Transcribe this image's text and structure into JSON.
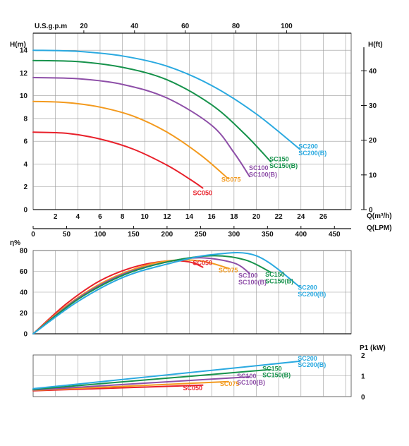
{
  "chart_data": [
    {
      "type": "line",
      "name_panel": "head",
      "ylabel_left": "H(m)",
      "ylabel_right": "H(ft)",
      "xlabel_bottom_1": "Q(m³/h)",
      "xlabel_bottom_2": "Q(LPM)",
      "xlabel_top": "U.S.g.p.m",
      "x_m3h_ticks": [
        2,
        4,
        6,
        8,
        10,
        12,
        14,
        16,
        18,
        20,
        22,
        24,
        26
      ],
      "x_lpm_ticks": [
        0,
        50,
        100,
        150,
        200,
        250,
        300,
        350,
        400,
        450
      ],
      "x_gpm_ticks": [
        20,
        40,
        60,
        80,
        100
      ],
      "y_m_ticks": [
        0,
        2,
        4,
        6,
        8,
        10,
        12,
        14
      ],
      "y_ft_ticks": [
        0,
        10,
        20,
        30,
        40
      ],
      "xlim_m3h": [
        0,
        28.5
      ],
      "ylim_m": [
        0,
        15.5
      ],
      "series": [
        {
          "name": "SC050",
          "color": "#e8202a",
          "x": [
            0,
            3,
            6,
            9,
            12,
            14,
            15.2
          ],
          "y": [
            6.8,
            6.7,
            6.2,
            5.3,
            3.9,
            2.7,
            1.9
          ]
        },
        {
          "name": "SC075",
          "color": "#f39a1e",
          "x": [
            0,
            3,
            6,
            9,
            12,
            15,
            17.5
          ],
          "y": [
            9.5,
            9.4,
            9.0,
            8.2,
            6.8,
            4.8,
            2.7
          ]
        },
        {
          "name": "SC100",
          "color": "#8e4fa8",
          "x": [
            0,
            4,
            8,
            12,
            16,
            18,
            19.4
          ],
          "y": [
            11.6,
            11.5,
            11.0,
            9.8,
            7.4,
            5.0,
            2.9
          ]
        },
        {
          "name": "SC150",
          "color": "#16924b",
          "x": [
            0,
            4,
            8,
            12,
            16,
            19,
            21.3
          ],
          "y": [
            13.1,
            13.0,
            12.5,
            11.4,
            9.2,
            6.6,
            4.2
          ]
        },
        {
          "name": "SC200",
          "color": "#2aa9e0",
          "x": [
            0,
            4,
            8,
            12,
            16,
            20,
            23.9
          ],
          "y": [
            14.0,
            13.9,
            13.5,
            12.6,
            10.9,
            8.4,
            5.3
          ]
        }
      ],
      "labels": [
        {
          "series": "SC050",
          "lines": [
            "SC050"
          ]
        },
        {
          "series": "SC075",
          "lines": [
            "SC075"
          ]
        },
        {
          "series": "SC100",
          "lines": [
            "SC100",
            "SC100(B)"
          ]
        },
        {
          "series": "SC150",
          "lines": [
            "SC150",
            "SC150(B)"
          ]
        },
        {
          "series": "SC200",
          "lines": [
            "SC200",
            "SC200(B)"
          ]
        }
      ]
    },
    {
      "type": "line",
      "name_panel": "efficiency",
      "ylabel_left": "η%",
      "y_ticks": [
        0,
        20,
        40,
        60,
        80
      ],
      "ylim": [
        0,
        80
      ],
      "xlim_m3h": [
        0,
        28.5
      ],
      "series": [
        {
          "name": "SC050",
          "color": "#e8202a",
          "x": [
            0,
            3,
            6,
            9,
            12,
            14,
            15.2
          ],
          "y": [
            0,
            29,
            51,
            64,
            70,
            69,
            64
          ]
        },
        {
          "name": "SC075",
          "color": "#f39a1e",
          "x": [
            0,
            3,
            6,
            9,
            12,
            15,
            17.5
          ],
          "y": [
            0,
            27,
            48,
            62,
            70,
            70,
            63
          ]
        },
        {
          "name": "SC100",
          "color": "#8e4fa8",
          "x": [
            0,
            4,
            8,
            12,
            15,
            18,
            19.4
          ],
          "y": [
            0,
            34,
            57,
            69,
            73,
            68,
            58
          ]
        },
        {
          "name": "SC150",
          "color": "#16924b",
          "x": [
            0,
            4,
            8,
            12,
            16,
            19,
            21.3
          ],
          "y": [
            0,
            33,
            56,
            69,
            75,
            71,
            59
          ]
        },
        {
          "name": "SC200",
          "color": "#2aa9e0",
          "x": [
            0,
            4,
            8,
            12,
            16,
            20,
            23.9
          ],
          "y": [
            0,
            31,
            54,
            67,
            76,
            75,
            45
          ]
        }
      ],
      "labels": [
        {
          "series": "SC050",
          "lines": [
            "SC050"
          ]
        },
        {
          "series": "SC075",
          "lines": [
            "SC075"
          ]
        },
        {
          "series": "SC100",
          "lines": [
            "SC100",
            "SC100(B)"
          ]
        },
        {
          "series": "SC150",
          "lines": [
            "SC150",
            "SC150(B)"
          ]
        },
        {
          "series": "SC200",
          "lines": [
            "SC200",
            "SC200(B)"
          ]
        }
      ]
    },
    {
      "type": "line",
      "name_panel": "power",
      "ylabel_right": "P1 (kW)",
      "y_ticks": [
        0,
        1,
        2
      ],
      "ylim": [
        0,
        2
      ],
      "xlim_m3h": [
        0,
        28.5
      ],
      "series": [
        {
          "name": "SC050",
          "color": "#e8202a",
          "x": [
            0,
            15.2
          ],
          "y": [
            0.28,
            0.55
          ]
        },
        {
          "name": "SC075",
          "color": "#f39a1e",
          "x": [
            0,
            17.5
          ],
          "y": [
            0.3,
            0.72
          ]
        },
        {
          "name": "SC100",
          "color": "#8e4fa8",
          "x": [
            0,
            19.4
          ],
          "y": [
            0.32,
            0.95
          ]
        },
        {
          "name": "SC150",
          "color": "#16924b",
          "x": [
            0,
            21.3
          ],
          "y": [
            0.35,
            1.3
          ]
        },
        {
          "name": "SC200",
          "color": "#2aa9e0",
          "x": [
            0,
            23.9
          ],
          "y": [
            0.38,
            1.7
          ]
        }
      ],
      "labels": [
        {
          "series": "SC050",
          "lines": [
            "SC050"
          ]
        },
        {
          "series": "SC075",
          "lines": [
            "SC075"
          ]
        },
        {
          "series": "SC100",
          "lines": [
            "SC100",
            "SC100(B)"
          ]
        },
        {
          "series": "SC150",
          "lines": [
            "SC150",
            "SC150(B)"
          ]
        },
        {
          "series": "SC200",
          "lines": [
            "SC200",
            "SC200(B)"
          ]
        }
      ]
    }
  ]
}
